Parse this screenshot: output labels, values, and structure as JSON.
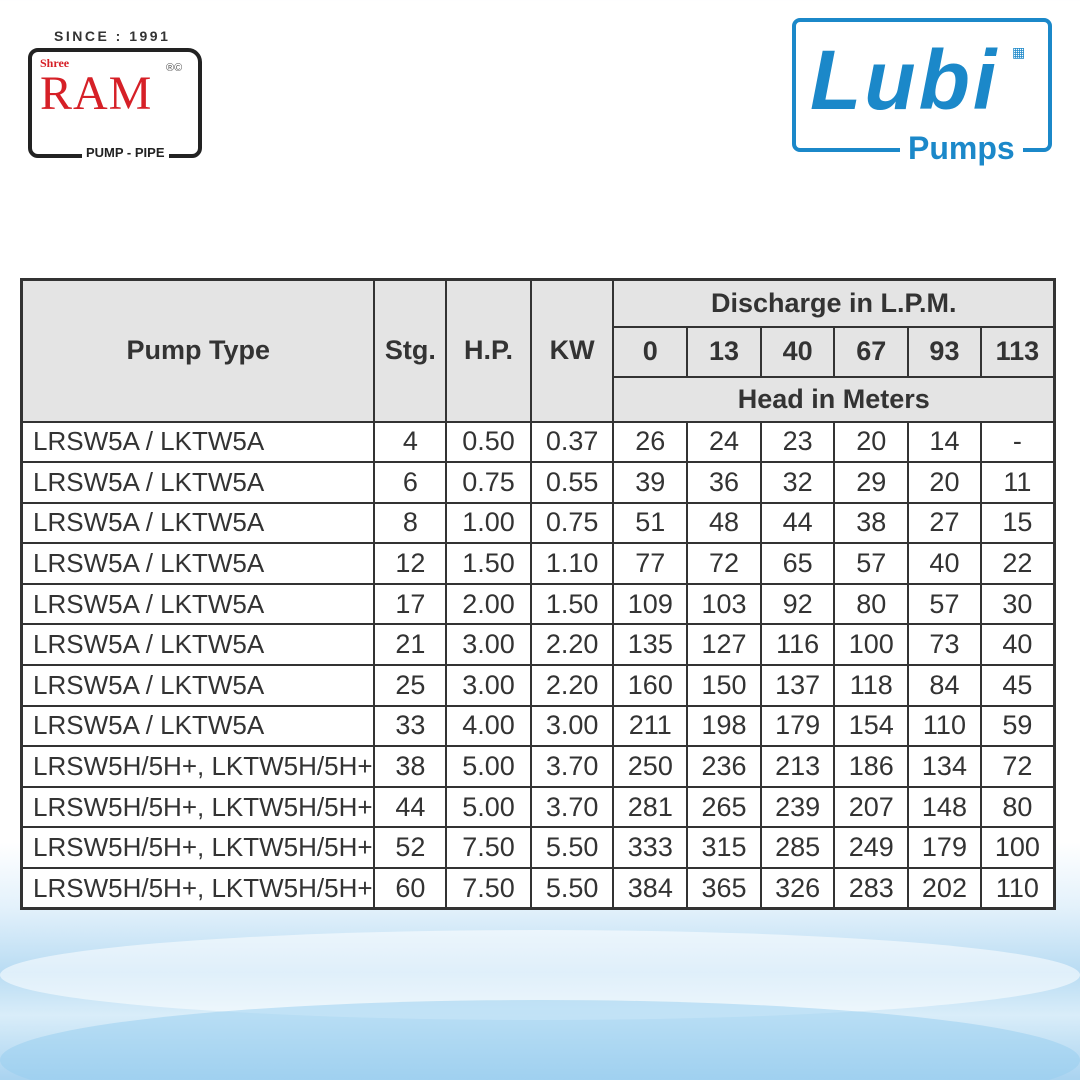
{
  "logos": {
    "ram": {
      "since": "SINCE : 1991",
      "shree": "Shree",
      "name": "RAM",
      "reg": "®©",
      "tagline": "PUMP - PIPE",
      "color": "#d62027"
    },
    "lubi": {
      "name": "Lubi",
      "tagline": "Pumps",
      "color": "#1b88c9"
    }
  },
  "table": {
    "headers": {
      "pump_type": "Pump Type",
      "stages": "Stg.",
      "hp": "H.P.",
      "kw": "KW",
      "discharge": "Discharge in L.P.M.",
      "head": "Head in Meters"
    },
    "discharge_lpm": [
      "0",
      "13",
      "40",
      "67",
      "93",
      "113"
    ],
    "rows": [
      [
        "LRSW5A / LKTW5A",
        "4",
        "0.50",
        "0.37",
        "26",
        "24",
        "23",
        "20",
        "14",
        "-"
      ],
      [
        "LRSW5A / LKTW5A",
        "6",
        "0.75",
        "0.55",
        "39",
        "36",
        "32",
        "29",
        "20",
        "11"
      ],
      [
        "LRSW5A / LKTW5A",
        "8",
        "1.00",
        "0.75",
        "51",
        "48",
        "44",
        "38",
        "27",
        "15"
      ],
      [
        "LRSW5A / LKTW5A",
        "12",
        "1.50",
        "1.10",
        "77",
        "72",
        "65",
        "57",
        "40",
        "22"
      ],
      [
        "LRSW5A / LKTW5A",
        "17",
        "2.00",
        "1.50",
        "109",
        "103",
        "92",
        "80",
        "57",
        "30"
      ],
      [
        "LRSW5A / LKTW5A",
        "21",
        "3.00",
        "2.20",
        "135",
        "127",
        "116",
        "100",
        "73",
        "40"
      ],
      [
        "LRSW5A / LKTW5A",
        "25",
        "3.00",
        "2.20",
        "160",
        "150",
        "137",
        "118",
        "84",
        "45"
      ],
      [
        "LRSW5A / LKTW5A",
        "33",
        "4.00",
        "3.00",
        "211",
        "198",
        "179",
        "154",
        "110",
        "59"
      ],
      [
        "LRSW5H/5H+, LKTW5H/5H+",
        "38",
        "5.00",
        "3.70",
        "250",
        "236",
        "213",
        "186",
        "134",
        "72"
      ],
      [
        "LRSW5H/5H+, LKTW5H/5H+",
        "44",
        "5.00",
        "3.70",
        "281",
        "265",
        "239",
        "207",
        "148",
        "80"
      ],
      [
        "LRSW5H/5H+, LKTW5H/5H+",
        "52",
        "7.50",
        "5.50",
        "333",
        "315",
        "285",
        "249",
        "179",
        "100"
      ],
      [
        "LRSW5H/5H+, LKTW5H/5H+",
        "60",
        "7.50",
        "5.50",
        "384",
        "365",
        "326",
        "283",
        "202",
        "110"
      ]
    ]
  }
}
